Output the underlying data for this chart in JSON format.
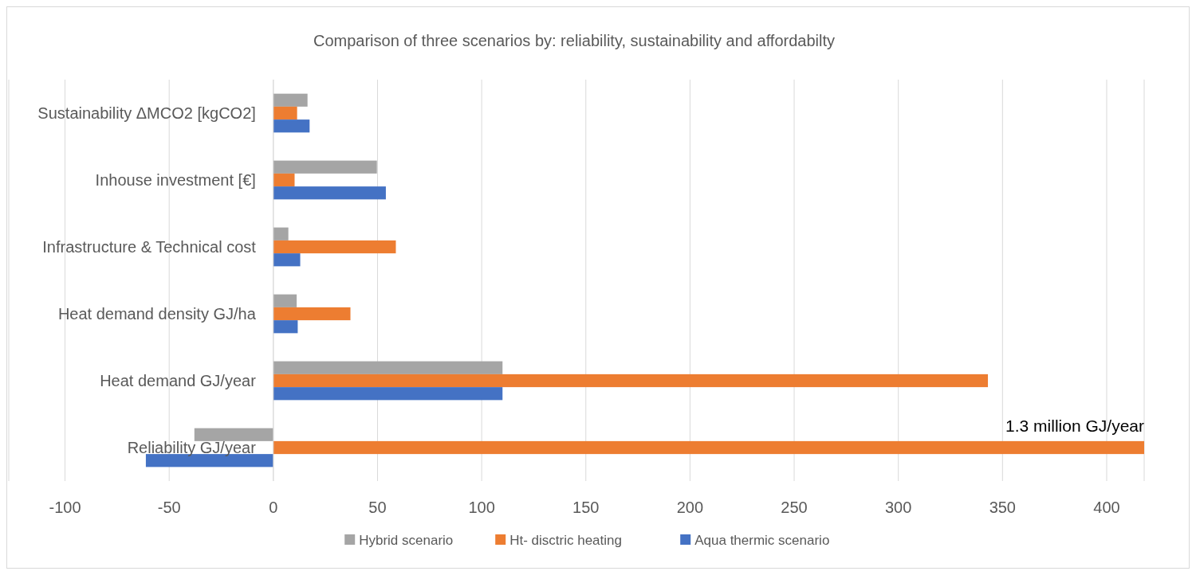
{
  "chart_data": {
    "type": "bar",
    "orientation": "horizontal",
    "title": "Comparison of three scenarios by: reliability, sustainability and affordabilty",
    "categories": [
      "Sustainability  ΔMCO2 [kgCO2]",
      "Inhouse investment [€]",
      "Infrastructure & Technical cost",
      "Heat demand density GJ/ha",
      "Heat demand GJ/year",
      "Reliability GJ/year"
    ],
    "series": [
      {
        "name": "Hybrid scenario",
        "color": "#a5a5a5",
        "values": [
          16.4,
          49.7,
          7.2,
          11.2,
          110,
          -37.9
        ]
      },
      {
        "name": "Ht- disctric heating",
        "color": "#ed7d31",
        "values": [
          11.4,
          10.2,
          58.8,
          37,
          343,
          418
        ]
      },
      {
        "name": "Aqua thermic scenario",
        "color": "#4472c4",
        "values": [
          17.4,
          54,
          12.9,
          11.7,
          110,
          -61.2
        ]
      }
    ],
    "xlim": [
      -127,
      418
    ],
    "xticks": [
      -100,
      -50,
      0,
      50,
      100,
      150,
      200,
      250,
      300,
      350,
      400
    ],
    "grid": "x",
    "legend": "bottom",
    "annotations": [
      {
        "text": "1.3 million GJ/year",
        "x": 418,
        "y": "Reliability GJ/year"
      }
    ]
  }
}
